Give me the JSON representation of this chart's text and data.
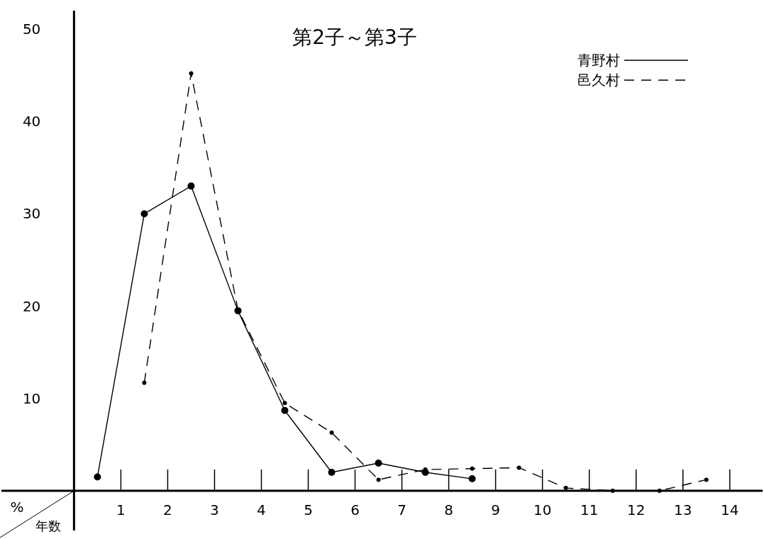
{
  "chart_data": {
    "type": "line",
    "title": "第2子～第3子",
    "xlabel": "年数",
    "annotations": [
      "%"
    ],
    "xlim": [
      -1.55,
      14.7
    ],
    "ylim": [
      0,
      52
    ],
    "xticks": [
      1,
      2,
      3,
      4,
      5,
      6,
      7,
      8,
      9,
      10,
      11,
      12,
      13,
      14
    ],
    "yticks": [
      10,
      20,
      30,
      40,
      50
    ],
    "grid": false,
    "legend": "top right",
    "marker": "circle",
    "series": [
      {
        "name": "青野村",
        "color": "#000000",
        "line_style": "solid",
        "x": [
          0.5,
          1.5,
          2.5,
          3.5,
          4.5,
          5.5,
          6.5,
          7.5,
          8.5
        ],
        "values": [
          1.5,
          30,
          33,
          19.5,
          8.7,
          2,
          3,
          2,
          1.3
        ]
      },
      {
        "name": "邑久村",
        "color": "#000000",
        "line_style": "dashed",
        "x": [
          1.5,
          2.5,
          3.5,
          4.5,
          5.5,
          6.5,
          7.5,
          8.5,
          9.5,
          10.5,
          11.5,
          12.5,
          13.5
        ],
        "values": [
          11.7,
          45.2,
          19.6,
          9.5,
          6.3,
          1.2,
          2.3,
          2.4,
          2.5,
          0.3,
          0,
          0,
          1.2
        ]
      }
    ]
  }
}
